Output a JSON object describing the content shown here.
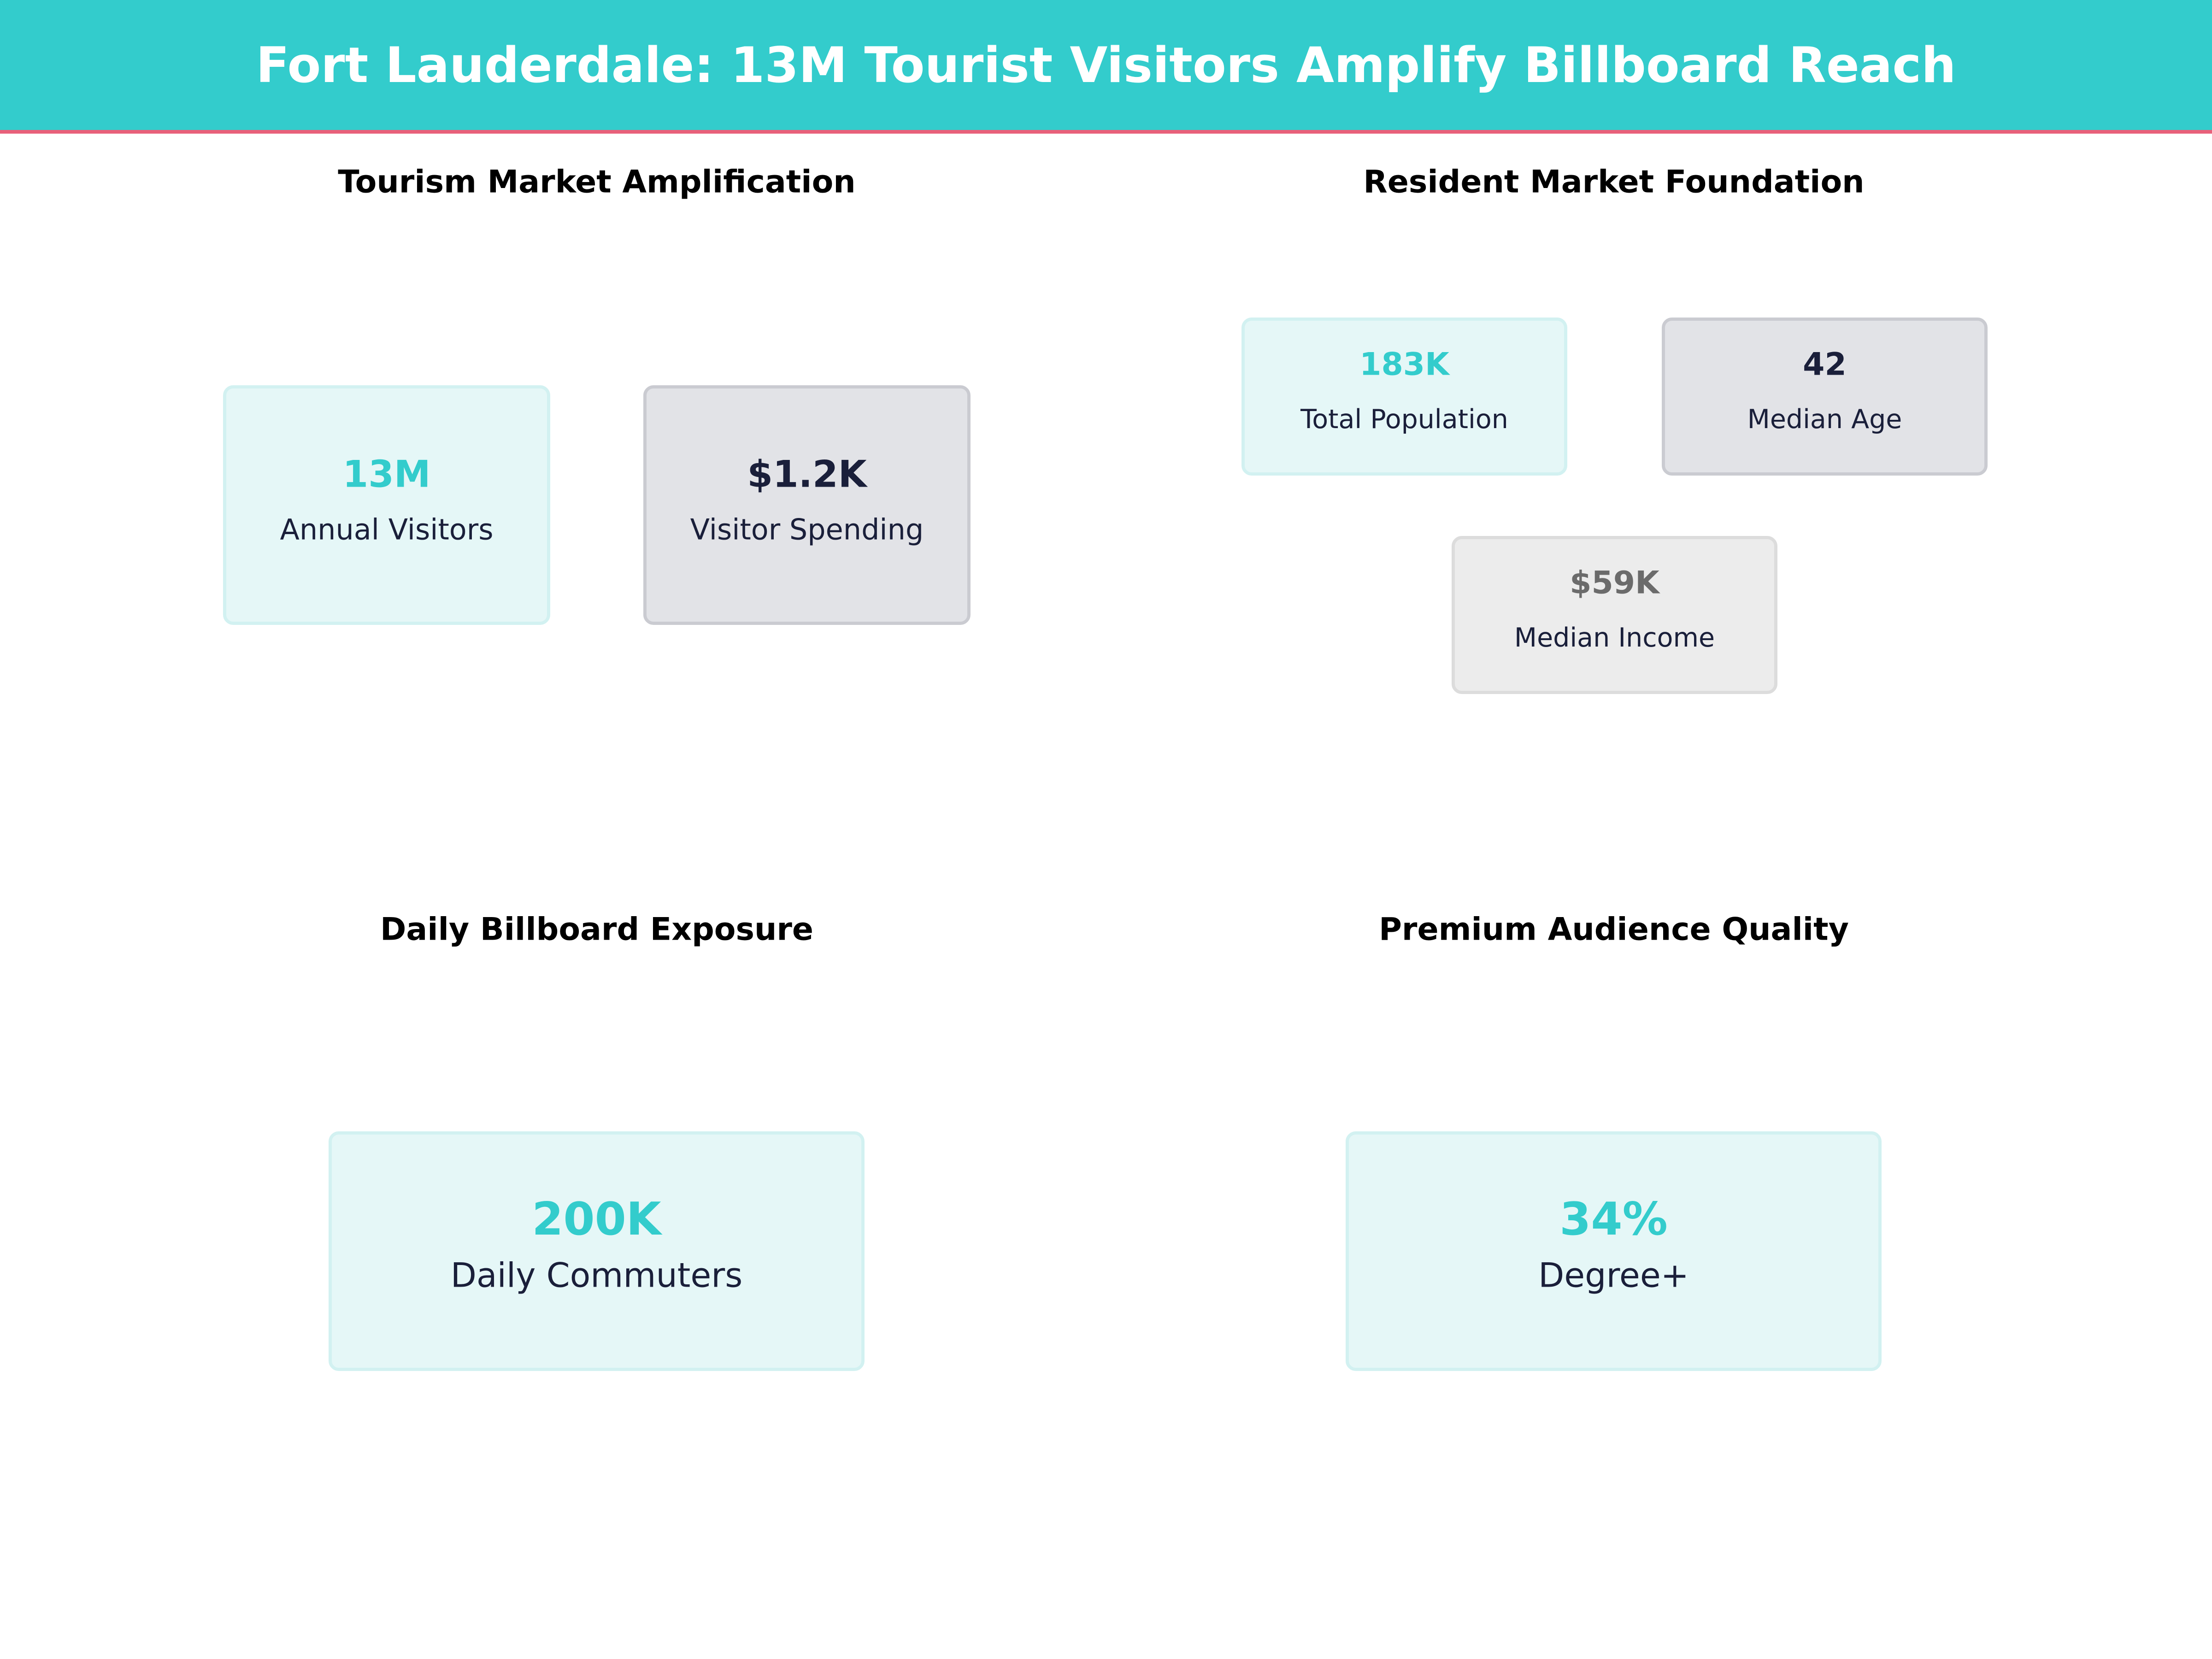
{
  "header": {
    "title": "Fort Lauderdale: 13M Tourist Visitors Amplify Billboard Reach"
  },
  "sections": {
    "tourism": {
      "title": "Tourism Market Amplification",
      "cards": [
        {
          "value": "13M",
          "label": "Annual Visitors"
        },
        {
          "value": "$1.2K",
          "label": "Visitor Spending"
        }
      ]
    },
    "resident": {
      "title": "Resident Market Foundation",
      "cards": [
        {
          "value": "183K",
          "label": "Total Population"
        },
        {
          "value": "42",
          "label": "Median Age"
        },
        {
          "value": "$59K",
          "label": "Median Income"
        }
      ]
    },
    "exposure": {
      "title": "Daily Billboard Exposure",
      "cards": [
        {
          "value": "200K",
          "label": "Daily Commuters"
        }
      ]
    },
    "audience": {
      "title": "Premium Audience Quality",
      "cards": [
        {
          "value": "34%",
          "label": "Degree+"
        }
      ]
    }
  },
  "colors": {
    "accent": "#33cccc",
    "navy": "#1a1f3a",
    "grey": "#6b6b6b",
    "rule": "#e8607a"
  }
}
